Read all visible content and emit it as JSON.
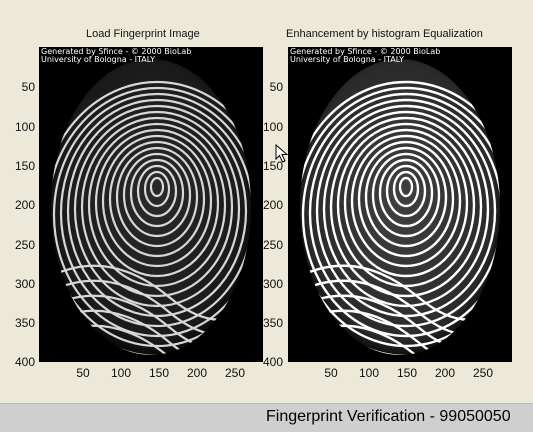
{
  "panels": {
    "left": {
      "title": "Load Fingerprint Image"
    },
    "right": {
      "title": "Enhancement by histogram Equalization"
    }
  },
  "overlay": {
    "line1": "Generated by Sfince - © 2000 BioLab",
    "line2": "University of Bologna - ITALY"
  },
  "axes": {
    "y_ticks": [
      "50",
      "100",
      "150",
      "200",
      "250",
      "300",
      "350",
      "400"
    ],
    "x_ticks": [
      "50",
      "100",
      "150",
      "200",
      "250"
    ]
  },
  "status": {
    "text": "Fingerprint Verification - 99050050"
  },
  "colors": {
    "background": "#ece9d8",
    "status_bar": "#cfcfcf",
    "image_bg": "#000000",
    "ridge": "#ffffff"
  }
}
